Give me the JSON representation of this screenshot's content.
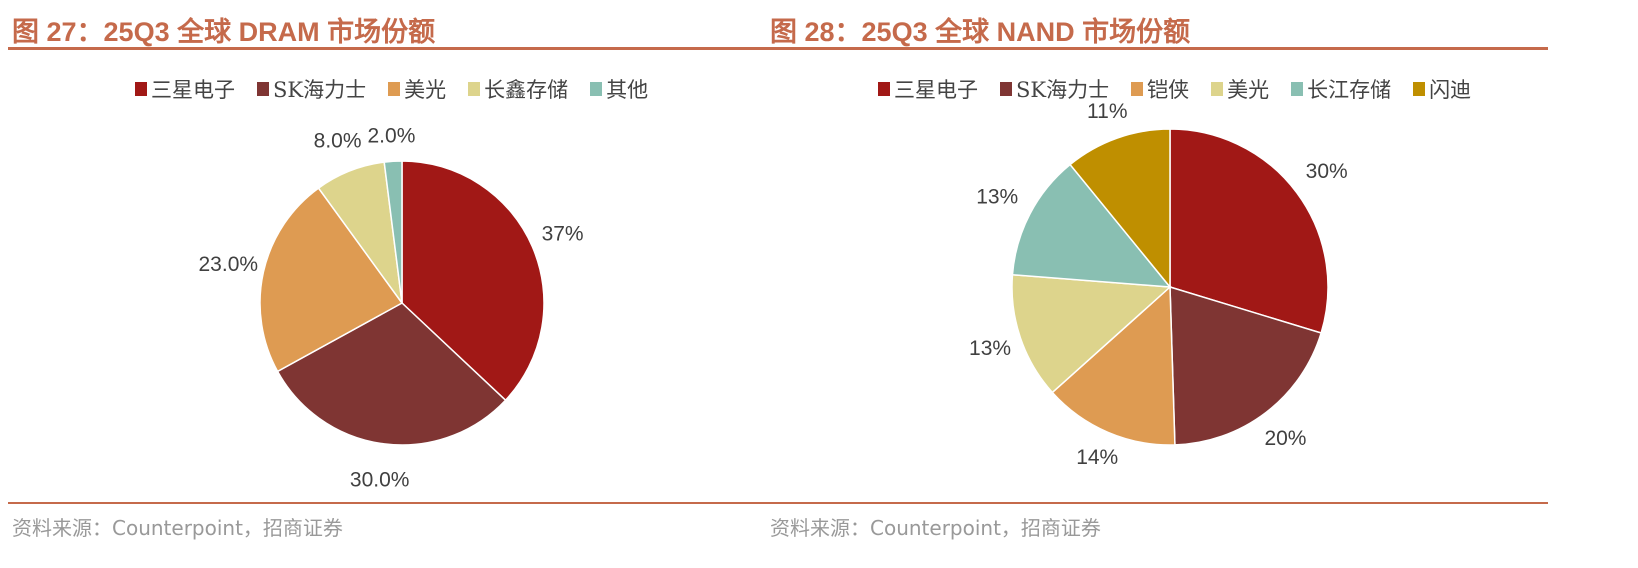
{
  "chart_data": [
    {
      "type": "pie",
      "title": "图 27：25Q3 全球 DRAM 市场份额",
      "source": "资料来源：Counterpoint，招商证券",
      "labels": [
        "三星电子",
        "SK海力士",
        "美光",
        "长鑫存储",
        "其他"
      ],
      "values": [
        37,
        30,
        23,
        8,
        2
      ],
      "data_labels": [
        "37%",
        "30.0%",
        "23.0%",
        "8.0%",
        "2.0%"
      ],
      "colors": [
        "#A11816",
        "#7F3533",
        "#DE9B52",
        "#DDD48C",
        "#89BFB2"
      ],
      "legend": "top"
    },
    {
      "type": "pie",
      "title": "图 28：25Q3 全球 NAND 市场份额",
      "source": "资料来源：Counterpoint，招商证券",
      "labels": [
        "三星电子",
        "SK海力士",
        "铠侠",
        "美光",
        "长江存储",
        "闪迪"
      ],
      "values": [
        30,
        20,
        14,
        13,
        13,
        11
      ],
      "data_labels": [
        "30%",
        "20%",
        "14%",
        "13%",
        "13%",
        "11%"
      ],
      "colors": [
        "#A11816",
        "#7F3533",
        "#DE9B52",
        "#DDD48C",
        "#89BFB2",
        "#BF8F00"
      ],
      "legend": "top"
    }
  ]
}
